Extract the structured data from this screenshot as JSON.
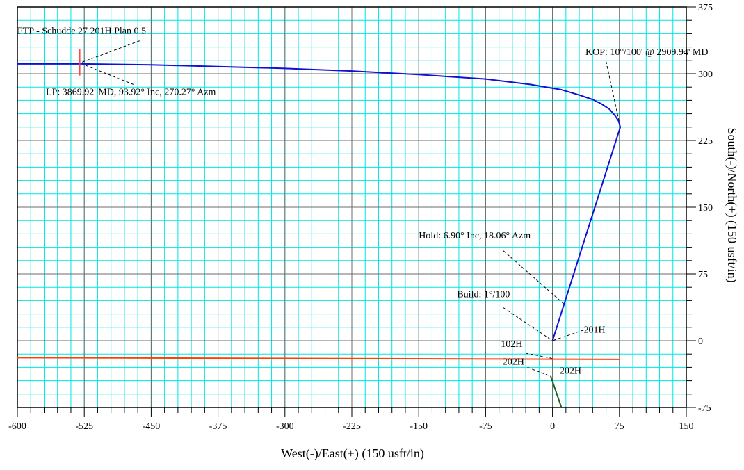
{
  "chart_data": {
    "type": "line",
    "title": "",
    "xlabel": "West(-)/East(+)  (150 usft/in)",
    "ylabel": "South(-)/North(+)  (150 usft/in)",
    "xlim": [
      -600,
      150
    ],
    "ylim": [
      -75,
      375
    ],
    "x_ticks": [
      -600,
      -525,
      -450,
      -375,
      -300,
      -225,
      -150,
      -75,
      0,
      75,
      150
    ],
    "y_ticks": [
      -75,
      0,
      75,
      150,
      225,
      300,
      375
    ],
    "grid": true,
    "major_grid_color": "#6b6b6b",
    "minor_grid_color": "#00e5e5",
    "series": [
      {
        "name": "201H",
        "color": "#1010d8",
        "x": [
          0,
          76,
          74,
          70,
          64,
          55,
          45,
          30,
          10,
          -25,
          -75,
          -150,
          -225,
          -300,
          -375,
          -450,
          -525,
          -600
        ],
        "y": [
          0,
          240,
          247,
          253,
          260,
          266,
          271,
          276,
          282,
          288,
          294,
          299,
          303,
          306,
          308,
          310,
          311,
          311
        ]
      },
      {
        "name": "102H",
        "color": "#ff4000",
        "x": [
          -600,
          75
        ],
        "y": [
          -19,
          -21
        ]
      },
      {
        "name": "202H",
        "color": "#1f5f1f",
        "x": [
          -2,
          10
        ],
        "y": [
          -40,
          -75
        ]
      }
    ],
    "annotations": [
      {
        "text": "FTP - Schudde 27 201H Plan 0.5",
        "x": -600,
        "y": 345,
        "ax": -463,
        "ay": 337,
        "tx": -530,
        "ty": 312
      },
      {
        "text": "LP:  3869.92' MD, 93.92° Inc, 270.27° Azm",
        "x": -568,
        "y": 276,
        "ax": -470,
        "ay": 288,
        "tx": -530,
        "ty": 312
      },
      {
        "text": "KOP: 10°/100' @ 2909.94' MD",
        "x": 37,
        "y": 321,
        "ax": 60,
        "ay": 314,
        "tx": 76,
        "ty": 240
      },
      {
        "text": "Hold: 6.90° Inc, 18.06° Azm",
        "x": -150,
        "y": 115,
        "ax": -55,
        "ay": 101,
        "tx": 13,
        "ty": 41
      },
      {
        "text": "Build: 1°/100",
        "x": -107,
        "y": 49,
        "ax": -55,
        "ay": 37,
        "tx": 0,
        "ty": 0
      },
      {
        "text": "201H",
        "x": 35,
        "y": 9,
        "ax": 35,
        "ay": 12,
        "tx": 0,
        "ty": 0
      },
      {
        "text": "102H",
        "x": -58,
        "y": -7,
        "ax": -30,
        "ay": -14,
        "tx": 0,
        "ty": -20
      },
      {
        "text": "202H",
        "x": -56,
        "y": -27,
        "ax": -28,
        "ay": -30,
        "tx": -2,
        "ty": -40
      },
      {
        "text": "202H",
        "x": 8,
        "y": -37,
        "ax": 0,
        "ay": 0,
        "tx": 0,
        "ty": 0
      }
    ],
    "markers": [
      {
        "name": "ftp-marker",
        "x": -530,
        "y": 312,
        "color": "#ff4040"
      }
    ]
  }
}
